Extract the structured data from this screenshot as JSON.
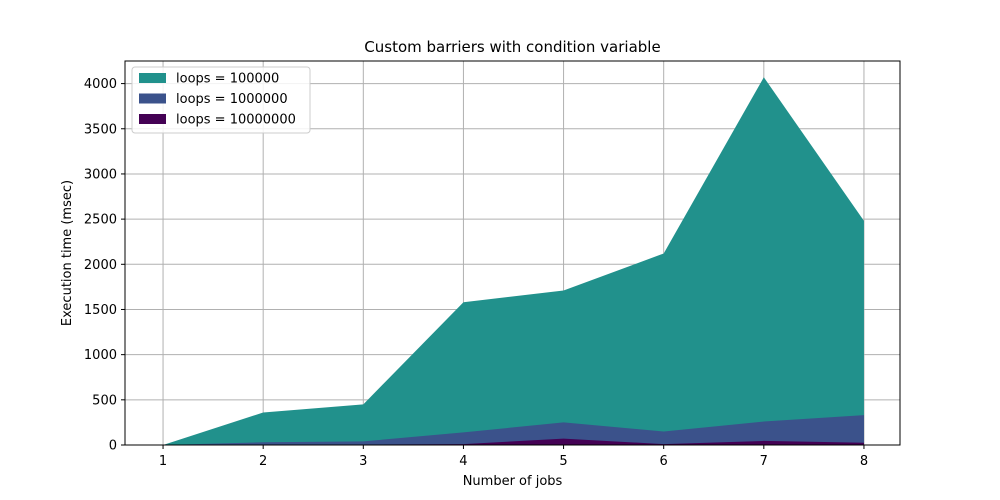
{
  "chart_data": {
    "type": "area",
    "title": "Custom barriers with condition variable",
    "xlabel": "Number of jobs",
    "ylabel": "Execution time (msec)",
    "x": [
      1,
      2,
      3,
      4,
      5,
      6,
      7,
      8
    ],
    "xlim": [
      0.62,
      8.36
    ],
    "ylim": [
      0,
      4250
    ],
    "yticks": [
      0,
      500,
      1000,
      1500,
      2000,
      2500,
      3000,
      3500,
      4000
    ],
    "grid": true,
    "legend_position": "upper-left",
    "series": [
      {
        "name": "loops = 100000",
        "color": "#21918c",
        "values": [
          0,
          360,
          450,
          1580,
          1710,
          2120,
          4070,
          2480
        ]
      },
      {
        "name": "loops = 1000000",
        "color": "#3b528b",
        "values": [
          0,
          30,
          40,
          140,
          250,
          150,
          260,
          330
        ]
      },
      {
        "name": "loops = 10000000",
        "color": "#440154",
        "values": [
          0,
          5,
          5,
          10,
          70,
          10,
          45,
          25
        ]
      }
    ]
  }
}
